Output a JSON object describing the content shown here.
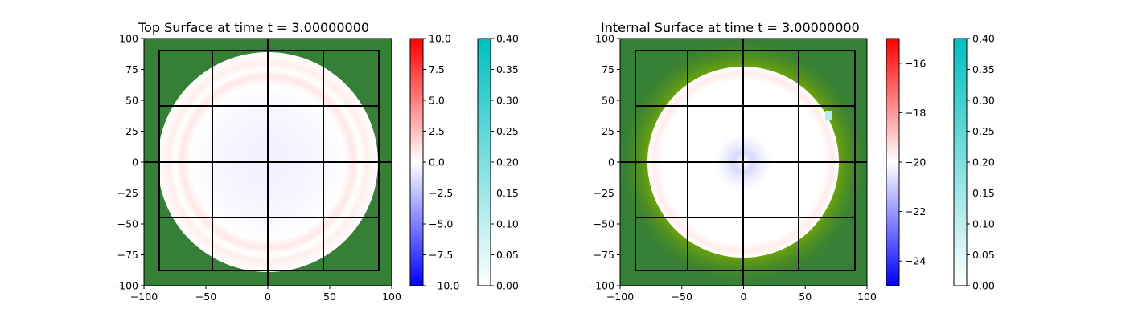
{
  "chart_data": [
    {
      "type": "heatmap",
      "title": "Top Surface at time t =     3.00000000",
      "xlim": [
        -100,
        100
      ],
      "ylim": [
        -100,
        100
      ],
      "xticks": [
        -100,
        -50,
        0,
        50,
        100
      ],
      "yticks": [
        -100,
        -75,
        -50,
        -25,
        0,
        25,
        50,
        75,
        100
      ],
      "grid_x": [
        -88,
        -45,
        0,
        45,
        89
      ],
      "grid_y": [
        -87,
        -45,
        0,
        45,
        90
      ],
      "background_color": "#367f36",
      "disc_radius": 89,
      "disc_color": "#ffffff",
      "features": [
        {
          "kind": "ring",
          "radius": 70,
          "value": 1.2
        },
        {
          "kind": "ring",
          "radius": 82,
          "value": 0.6
        },
        {
          "kind": "ring",
          "radius": 50,
          "value": -0.4
        }
      ],
      "colorbars": [
        {
          "name": "value",
          "range": [
            -10,
            10
          ],
          "colors": [
            "#0000ff",
            "#ffffff",
            "#ff0000"
          ],
          "ticks": [
            10.0,
            7.5,
            5.0,
            2.5,
            0.0,
            -2.5,
            -5.0,
            -7.5,
            -10.0
          ],
          "tick_labels": [
            "10.0",
            "7.5",
            "5.0",
            "2.5",
            "0.0",
            "−2.5",
            "−5.0",
            "−7.5",
            "−10.0"
          ]
        },
        {
          "name": "depth",
          "range": [
            0,
            0.4
          ],
          "colors": [
            "#ffffff",
            "#00bfbf"
          ],
          "ticks": [
            0.4,
            0.35,
            0.3,
            0.25,
            0.2,
            0.15,
            0.1,
            0.05,
            0.0
          ],
          "tick_labels": [
            "0.40",
            "0.35",
            "0.30",
            "0.25",
            "0.20",
            "0.15",
            "0.10",
            "0.05",
            "0.00"
          ]
        }
      ]
    },
    {
      "type": "heatmap",
      "title": "Internal Surface at time t =     3.00000000",
      "xlim": [
        -100,
        100
      ],
      "ylim": [
        -100,
        100
      ],
      "xticks": [
        -100,
        -50,
        0,
        50,
        100
      ],
      "yticks": [
        -100,
        -75,
        -50,
        -25,
        0,
        25,
        50,
        75,
        100
      ],
      "grid_x": [
        -88,
        -45,
        0,
        45,
        89
      ],
      "grid_y": [
        -87,
        -45,
        0,
        45,
        90
      ],
      "background_color": "#367f36",
      "halo_color": "#7aab00",
      "disc_radius": 77,
      "disc_color": "#ffffff",
      "features": [
        {
          "kind": "ring",
          "radius": 72,
          "value": -19.6
        },
        {
          "kind": "ring",
          "radius": 15,
          "value": -21.0
        }
      ],
      "colorbars": [
        {
          "name": "value",
          "range": [
            -25,
            -15
          ],
          "colors": [
            "#0000ff",
            "#ffffff",
            "#ff0000"
          ],
          "ticks": [
            -16,
            -18,
            -20,
            -22,
            -24
          ],
          "tick_labels": [
            "−16",
            "−18",
            "−20",
            "−22",
            "−24"
          ]
        },
        {
          "name": "depth",
          "range": [
            0,
            0.4
          ],
          "colors": [
            "#ffffff",
            "#00bfbf"
          ],
          "ticks": [
            0.4,
            0.35,
            0.3,
            0.25,
            0.2,
            0.15,
            0.1,
            0.05,
            0.0
          ],
          "tick_labels": [
            "0.40",
            "0.35",
            "0.30",
            "0.25",
            "0.20",
            "0.15",
            "0.10",
            "0.05",
            "0.00"
          ]
        }
      ]
    }
  ]
}
